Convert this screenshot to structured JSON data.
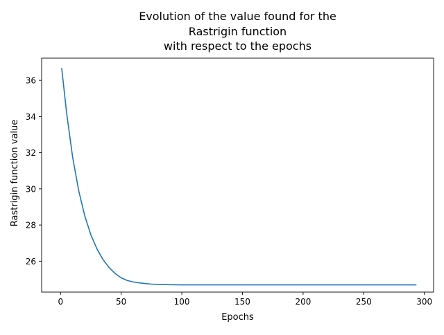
{
  "chart_data": {
    "type": "line",
    "title_lines": [
      "Evolution of the value found for the",
      "Rastrigin function",
      "with respect to the epochs"
    ],
    "xlabel": "Epochs",
    "ylabel": "Rastrigin function value",
    "xlim": [
      -15.6,
      307.6
    ],
    "ylim": [
      24.29,
      37.23
    ],
    "xticks": [
      0,
      50,
      100,
      150,
      200,
      250,
      300
    ],
    "yticks": [
      26,
      28,
      30,
      32,
      34,
      36
    ],
    "grid": false,
    "legend": "none",
    "line_color": "#1f77b4",
    "series": [
      {
        "x": [
          1,
          5,
          10,
          15,
          20,
          25,
          30,
          35,
          40,
          45,
          50,
          55,
          60,
          65,
          70,
          75,
          80,
          85,
          90,
          100,
          110,
          120,
          150,
          200,
          250,
          293
        ],
        "y": [
          36.65,
          34.2,
          31.74,
          29.89,
          28.5,
          27.46,
          26.68,
          26.09,
          25.65,
          25.32,
          25.08,
          24.93,
          24.85,
          24.8,
          24.76,
          24.73,
          24.72,
          24.71,
          24.7,
          24.69,
          24.69,
          24.69,
          24.69,
          24.69,
          24.69,
          24.69
        ]
      }
    ]
  }
}
